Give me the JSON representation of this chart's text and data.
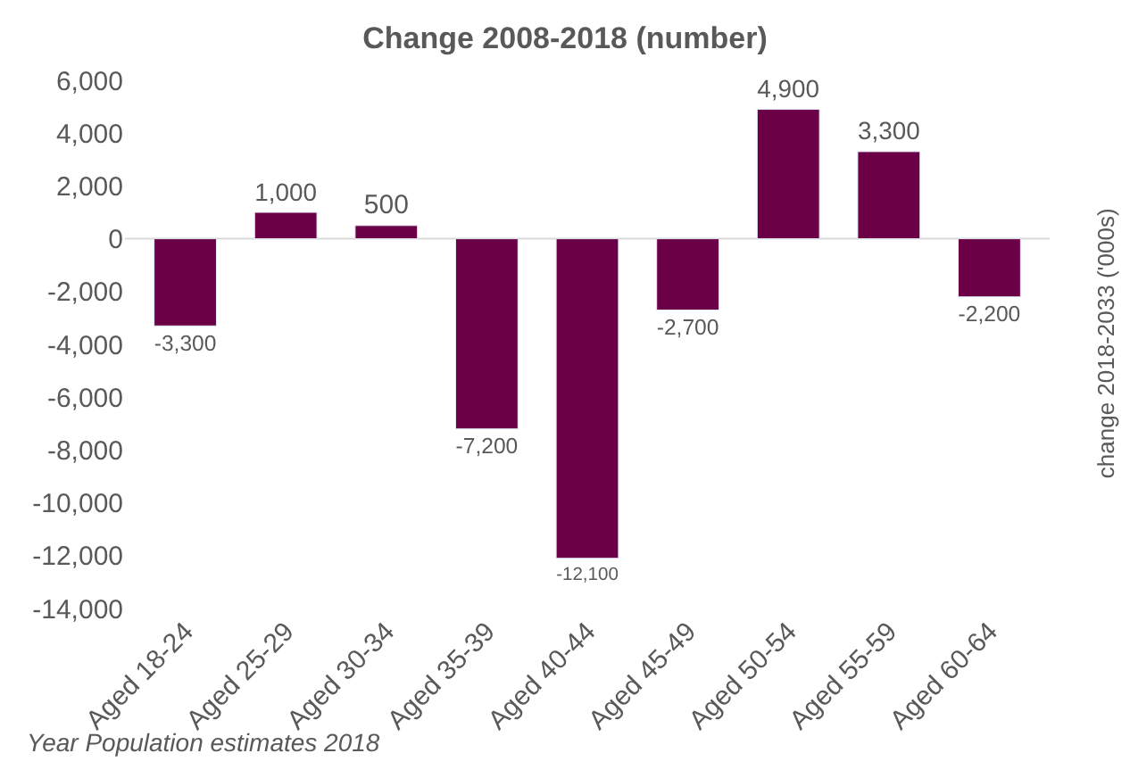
{
  "chart_data": {
    "type": "bar",
    "title": "Change 2008-2018 (number)",
    "y2label": "change 2018-2033 ('000s)",
    "categories": [
      "Aged 18-24",
      "Aged 25-29",
      "Aged 30-34",
      "Aged 35-39",
      "Aged 40-44",
      "Aged 45-49",
      "Aged 50-54",
      "Aged 55-59",
      "Aged 60-64"
    ],
    "values": [
      -3300,
      1000,
      500,
      -7200,
      -12100,
      -2700,
      4900,
      3300,
      -2200
    ],
    "color": "#6b0046",
    "ylim": [
      -14000,
      6000
    ],
    "yticks": [
      {
        "value": -14000,
        "label": "-14,000"
      },
      {
        "value": -12000,
        "label": "-12,000"
      },
      {
        "value": -10000,
        "label": "-10,000"
      },
      {
        "value": -8000,
        "label": "-8,000"
      },
      {
        "value": -6000,
        "label": "-6,000"
      },
      {
        "value": -4000,
        "label": "-4,000"
      },
      {
        "value": -2000,
        "label": "-2,000"
      },
      0,
      {
        "value": 2000,
        "label": "2,000"
      },
      {
        "value": 4000,
        "label": "4,000"
      },
      {
        "value": 6000,
        "label": "6,000"
      }
    ],
    "value_labels": [
      "-3,300",
      "1,000",
      "500",
      "-7,200",
      "-12,100",
      "-2,700",
      "4,900",
      "3,300",
      "-2,200"
    ],
    "legend": false,
    "annotations": [
      "Year Population estimates 2018"
    ]
  }
}
